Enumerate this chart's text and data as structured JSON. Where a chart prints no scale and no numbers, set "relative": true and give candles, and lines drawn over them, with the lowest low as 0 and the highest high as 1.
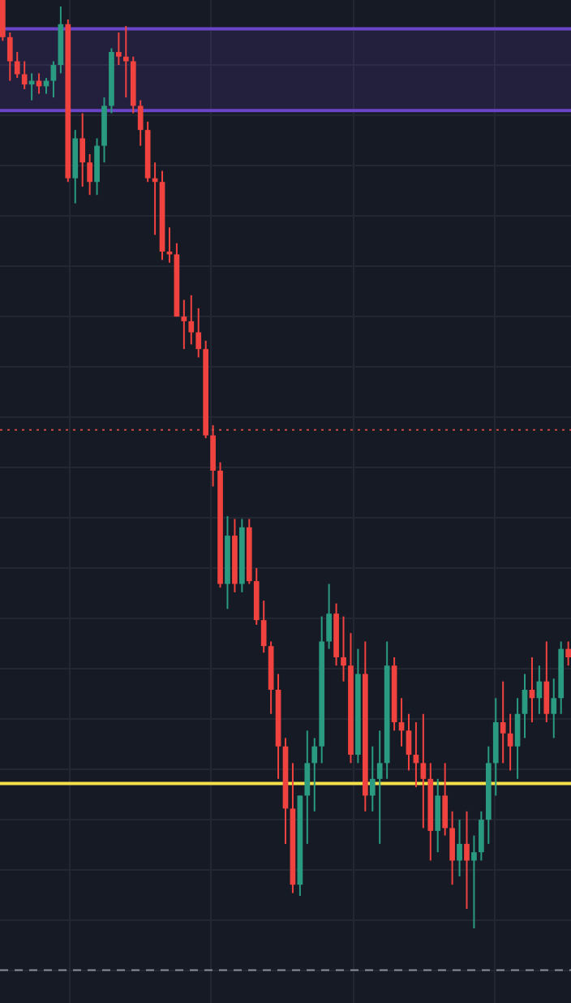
{
  "chart_data": {
    "type": "candlestick",
    "relative": true,
    "grid": true,
    "categories": [
      null,
      null,
      null,
      null,
      null,
      null,
      null,
      null,
      null,
      null,
      null,
      null,
      null,
      null,
      null,
      null,
      null,
      null,
      null,
      null,
      null,
      null,
      null,
      null,
      null,
      null,
      null,
      null,
      null,
      null,
      null,
      null,
      null,
      null,
      null,
      null,
      null,
      null,
      null,
      null,
      null,
      null,
      null,
      null,
      null,
      null,
      null,
      null,
      null,
      null,
      null,
      null,
      null,
      null,
      null,
      null,
      null,
      null,
      null,
      null,
      null,
      null,
      null,
      null,
      null,
      null,
      null,
      null,
      null,
      null,
      null,
      null,
      null,
      null,
      null,
      null,
      null,
      null,
      null
    ],
    "ohlc": [
      [
        1.0,
        1.0,
        0.956,
        0.96
      ],
      [
        0.96,
        0.965,
        0.913,
        0.934
      ],
      [
        0.934,
        0.944,
        0.916,
        0.92
      ],
      [
        0.92,
        0.934,
        0.904,
        0.909
      ],
      [
        0.909,
        0.921,
        0.892,
        0.913
      ],
      [
        0.913,
        0.921,
        0.899,
        0.907
      ],
      [
        0.907,
        0.916,
        0.899,
        0.913
      ],
      [
        0.913,
        0.934,
        0.895,
        0.93
      ],
      [
        0.93,
        0.993,
        0.921,
        0.974
      ],
      [
        0.974,
        0.979,
        0.804,
        0.808
      ],
      [
        0.808,
        0.86,
        0.781,
        0.851
      ],
      [
        0.851,
        0.878,
        0.799,
        0.825
      ],
      [
        0.825,
        0.834,
        0.79,
        0.804
      ],
      [
        0.804,
        0.851,
        0.79,
        0.843
      ],
      [
        0.843,
        0.895,
        0.825,
        0.886
      ],
      [
        0.886,
        0.948,
        0.878,
        0.944
      ],
      [
        0.944,
        0.965,
        0.93,
        0.939
      ],
      [
        0.939,
        0.972,
        0.895,
        0.934
      ],
      [
        0.934,
        0.939,
        0.878,
        0.886
      ],
      [
        0.886,
        0.892,
        0.843,
        0.86
      ],
      [
        0.86,
        0.869,
        0.804,
        0.808
      ],
      [
        0.808,
        0.825,
        0.747,
        0.804
      ],
      [
        0.804,
        0.816,
        0.72,
        0.729
      ],
      [
        0.729,
        0.755,
        0.717,
        0.726
      ],
      [
        0.726,
        0.738,
        0.659,
        0.659
      ],
      [
        0.659,
        0.677,
        0.624,
        0.654
      ],
      [
        0.654,
        0.682,
        0.629,
        0.642
      ],
      [
        0.642,
        0.668,
        0.615,
        0.624
      ],
      [
        0.624,
        0.633,
        0.528,
        0.531
      ],
      [
        0.531,
        0.542,
        0.476,
        0.493
      ],
      [
        0.493,
        0.502,
        0.367,
        0.371
      ],
      [
        0.371,
        0.444,
        0.344,
        0.423
      ],
      [
        0.423,
        0.441,
        0.362,
        0.371
      ],
      [
        0.371,
        0.441,
        0.362,
        0.432
      ],
      [
        0.432,
        0.441,
        0.371,
        0.374
      ],
      [
        0.374,
        0.388,
        0.327,
        0.332
      ],
      [
        0.332,
        0.353,
        0.297,
        0.304
      ],
      [
        0.304,
        0.309,
        0.231,
        0.257
      ],
      [
        0.257,
        0.274,
        0.161,
        0.196
      ],
      [
        0.196,
        0.205,
        0.091,
        0.129
      ],
      [
        0.129,
        0.178,
        0.038,
        0.047
      ],
      [
        0.047,
        0.143,
        0.035,
        0.143
      ],
      [
        0.143,
        0.213,
        0.091,
        0.178
      ],
      [
        0.178,
        0.205,
        0.126,
        0.196
      ],
      [
        0.196,
        0.336,
        0.178,
        0.309
      ],
      [
        0.309,
        0.371,
        0.301,
        0.339
      ],
      [
        0.339,
        0.35,
        0.283,
        0.292
      ],
      [
        0.292,
        0.336,
        0.266,
        0.283
      ],
      [
        0.283,
        0.318,
        0.178,
        0.187
      ],
      [
        0.187,
        0.301,
        0.178,
        0.274
      ],
      [
        0.274,
        0.309,
        0.126,
        0.143
      ],
      [
        0.143,
        0.196,
        0.126,
        0.161
      ],
      [
        0.161,
        0.213,
        0.091,
        0.178
      ],
      [
        0.178,
        0.309,
        0.161,
        0.283
      ],
      [
        0.283,
        0.292,
        0.213,
        0.222
      ],
      [
        0.222,
        0.248,
        0.196,
        0.213
      ],
      [
        0.213,
        0.231,
        0.17,
        0.187
      ],
      [
        0.187,
        0.222,
        0.152,
        0.178
      ],
      [
        0.178,
        0.231,
        0.108,
        0.161
      ],
      [
        0.161,
        0.178,
        0.073,
        0.105
      ],
      [
        0.105,
        0.161,
        0.082,
        0.143
      ],
      [
        0.143,
        0.178,
        0.1,
        0.108
      ],
      [
        0.108,
        0.126,
        0.047,
        0.073
      ],
      [
        0.073,
        0.117,
        0.056,
        0.091
      ],
      [
        0.091,
        0.126,
        0.021,
        0.073
      ],
      [
        0.073,
        0.1,
        0.0,
        0.082
      ],
      [
        0.082,
        0.126,
        0.073,
        0.117
      ],
      [
        0.117,
        0.196,
        0.091,
        0.178
      ],
      [
        0.178,
        0.248,
        0.143,
        0.222
      ],
      [
        0.222,
        0.266,
        0.178,
        0.21
      ],
      [
        0.21,
        0.231,
        0.17,
        0.196
      ],
      [
        0.196,
        0.248,
        0.161,
        0.231
      ],
      [
        0.231,
        0.274,
        0.205,
        0.257
      ],
      [
        0.257,
        0.292,
        0.222,
        0.248
      ],
      [
        0.248,
        0.283,
        0.231,
        0.266
      ],
      [
        0.266,
        0.309,
        0.222,
        0.231
      ],
      [
        0.231,
        0.269,
        0.205,
        0.248
      ],
      [
        0.248,
        0.309,
        0.231,
        0.301
      ],
      [
        0.301,
        0.309,
        0.283,
        0.292
      ]
    ],
    "bands": [
      {
        "axis": "y",
        "from": 0.881,
        "to": 0.969,
        "color": "#6b45c8"
      }
    ],
    "ref_lines": [
      {
        "axis": "y",
        "value": 0.969,
        "color": "#6b45c8",
        "line_style": "solid"
      },
      {
        "axis": "y",
        "value": 0.881,
        "color": "#6b45c8",
        "line_style": "solid"
      },
      {
        "axis": "y",
        "value": 0.156,
        "color": "#f5e24a",
        "line_style": "solid"
      },
      {
        "axis": "y",
        "value": 0.537,
        "color": "#c84a45",
        "line_style": "dotted"
      },
      {
        "axis": "y",
        "value": -0.045,
        "color": "#8a8e99",
        "line_style": "dashed"
      }
    ]
  }
}
